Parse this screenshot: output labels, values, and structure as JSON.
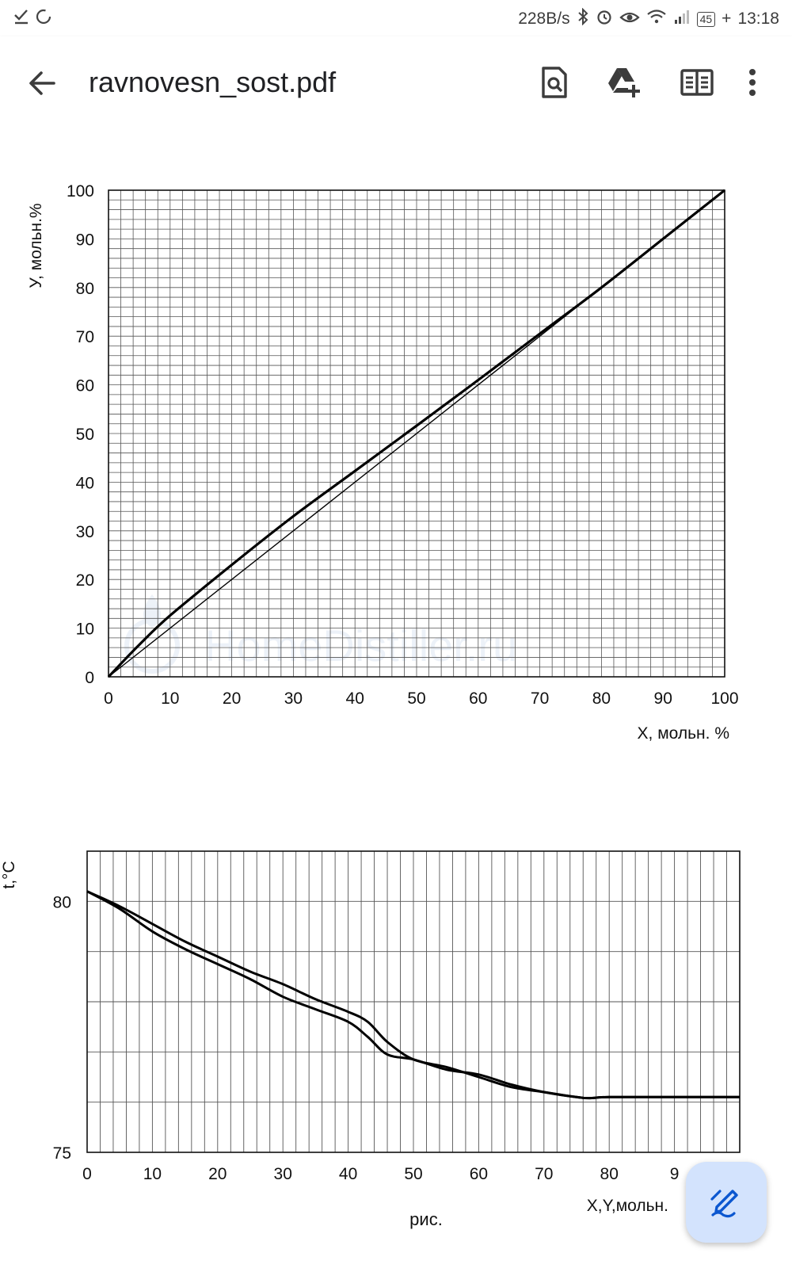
{
  "status_bar": {
    "net_speed": "228B/s",
    "battery": "45",
    "time": "13:18",
    "icons": [
      "check-icon",
      "sync-icon",
      "bluetooth-icon",
      "alarm-icon",
      "eye-icon",
      "wifi-icon",
      "signal-icon",
      "battery-icon"
    ]
  },
  "app_bar": {
    "title": "ravnovesn_sost.pdf",
    "icons": [
      "back-arrow-icon",
      "search-document-icon",
      "drive-add-icon",
      "reader-mode-icon",
      "more-vert-icon"
    ]
  },
  "document": {
    "watermark": "HomeDistiller.ru",
    "caption": "рис."
  },
  "chart_data": [
    {
      "type": "line",
      "xlabel": "X, мольн. %",
      "ylabel": "У, мольн.%",
      "xlim": [
        0,
        100
      ],
      "ylim": [
        0,
        100
      ],
      "x_ticks": [
        "0",
        "10",
        "20",
        "30",
        "40",
        "50",
        "60",
        "70",
        "80",
        "90",
        "100"
      ],
      "y_ticks": [
        "0",
        "10",
        "20",
        "30",
        "40",
        "50",
        "60",
        "70",
        "80",
        "90",
        "100"
      ],
      "grid": true,
      "series": [
        {
          "role": "equilibrium",
          "x": [
            0,
            5,
            10,
            20,
            30,
            40,
            50,
            60,
            70,
            80,
            90,
            100
          ],
          "y": [
            0,
            6.6,
            12.6,
            23,
            33,
            42.3,
            51.6,
            61,
            70.5,
            80,
            90,
            100
          ]
        },
        {
          "role": "diagonal",
          "x": [
            0,
            100
          ],
          "y": [
            0,
            100
          ]
        }
      ]
    },
    {
      "type": "line",
      "xlabel": "X,Y,мольн.",
      "ylabel": "t,°C",
      "xlim": [
        0,
        100
      ],
      "ylim": [
        75,
        81
      ],
      "x_ticks": [
        "0",
        "10",
        "20",
        "30",
        "40",
        "50",
        "60",
        "70",
        "80",
        "9"
      ],
      "y_ticks": [
        "75",
        "80"
      ],
      "grid": true,
      "series": [
        {
          "role": "curve-1",
          "x": [
            0,
            5,
            10,
            15,
            20,
            25,
            30,
            35,
            40,
            43,
            46,
            50,
            55,
            60,
            65,
            70,
            75,
            77,
            80,
            90,
            100
          ],
          "y": [
            80.2,
            79.85,
            79.4,
            79.05,
            78.75,
            78.45,
            78.1,
            77.85,
            77.6,
            77.3,
            76.95,
            76.85,
            76.65,
            76.55,
            76.35,
            76.2,
            76.1,
            76.08,
            76.1,
            76.1,
            76.1
          ]
        },
        {
          "role": "curve-2",
          "x": [
            0,
            5,
            10,
            15,
            20,
            25,
            30,
            35,
            40,
            43,
            46,
            50,
            55,
            60,
            65,
            70,
            75,
            77,
            80,
            90,
            100
          ],
          "y": [
            80.2,
            79.9,
            79.55,
            79.2,
            78.9,
            78.6,
            78.35,
            78.05,
            77.8,
            77.6,
            77.2,
            76.85,
            76.7,
            76.5,
            76.3,
            76.2,
            76.1,
            76.08,
            76.1,
            76.1,
            76.1
          ]
        }
      ]
    }
  ]
}
